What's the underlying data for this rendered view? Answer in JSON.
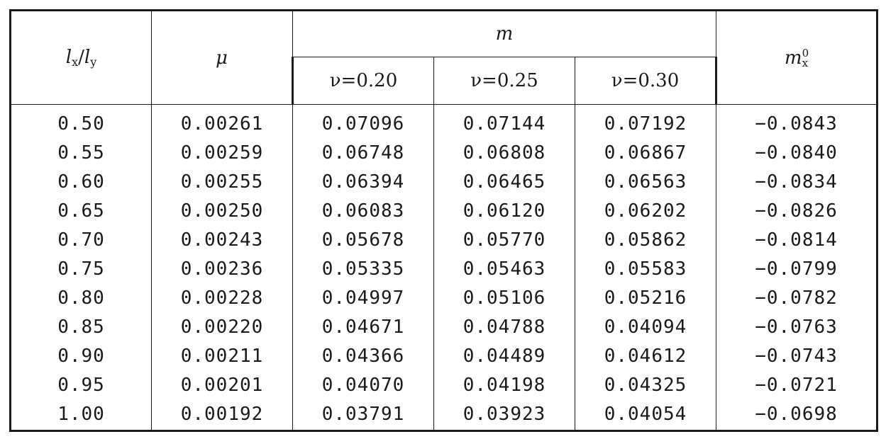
{
  "header": {
    "col1": {
      "main": "l",
      "sub1": "x",
      "sep": "/",
      "main2": "l",
      "sub2": "y"
    },
    "col2": "μ",
    "group": "m",
    "nu": [
      "ν=0.20",
      "ν=0.25",
      "ν=0.30"
    ],
    "col6": {
      "main": "m",
      "sup": "0",
      "sub": "x"
    }
  },
  "rows": [
    [
      "0.50",
      "0.00261",
      "0.07096",
      "0.07144",
      "0.07192",
      "−0.0843"
    ],
    [
      "0.55",
      "0.00259",
      "0.06748",
      "0.06808",
      "0.06867",
      "−0.0840"
    ],
    [
      "0.60",
      "0.00255",
      "0.06394",
      "0.06465",
      "0.06563",
      "−0.0834"
    ],
    [
      "0.65",
      "0.00250",
      "0.06083",
      "0.06120",
      "0.06202",
      "−0.0826"
    ],
    [
      "0.70",
      "0.00243",
      "0.05678",
      "0.05770",
      "0.05862",
      "−0.0814"
    ],
    [
      "0.75",
      "0.00236",
      "0.05335",
      "0.05463",
      "0.05583",
      "−0.0799"
    ],
    [
      "0.80",
      "0.00228",
      "0.04997",
      "0.05106",
      "0.05216",
      "−0.0782"
    ],
    [
      "0.85",
      "0.00220",
      "0.04671",
      "0.04788",
      "0.04094",
      "−0.0763"
    ],
    [
      "0.90",
      "0.00211",
      "0.04366",
      "0.04489",
      "0.04612",
      "−0.0743"
    ],
    [
      "0.95",
      "0.00201",
      "0.04070",
      "0.04198",
      "0.04325",
      "−0.0721"
    ],
    [
      "1.00",
      "0.00192",
      "0.03791",
      "0.03923",
      "0.04054",
      "−0.0698"
    ]
  ]
}
